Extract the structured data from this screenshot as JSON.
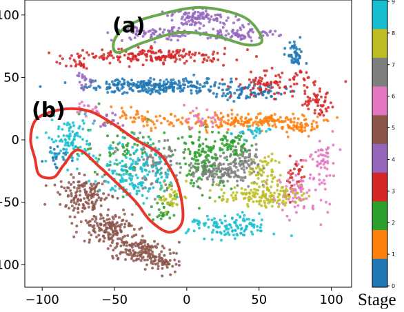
{
  "chart_data": {
    "type": "scatter",
    "title": "",
    "xlabel": "",
    "ylabel": "",
    "xlim": [
      -112,
      114
    ],
    "ylim": [
      -118,
      112
    ],
    "x_ticks": [
      -100,
      -50,
      0,
      50,
      100
    ],
    "y_ticks": [
      -100,
      -50,
      0,
      50,
      100
    ],
    "grid": false,
    "colorbar": {
      "label": "Stage",
      "ticks": [
        0,
        1,
        2,
        3,
        4,
        5,
        6,
        7,
        8,
        9
      ],
      "colors": [
        "#1f77b4",
        "#ff7f0e",
        "#2ca02c",
        "#d62728",
        "#9467bd",
        "#8c564b",
        "#e377c2",
        "#7f7f7f",
        "#bcbd22",
        "#17becf"
      ]
    },
    "annotations": [
      {
        "text": "(a)",
        "region": "stage 4 arc",
        "outline_color": "#6aa84f"
      },
      {
        "text": "(b)",
        "region": "mixed-stage lobe",
        "outline_color": "#e8372a"
      }
    ],
    "series": [
      {
        "stage": 0,
        "clusters": [
          {
            "x": -20,
            "y": 43,
            "sx": 25,
            "sy": 3,
            "n": 260
          },
          {
            "x": 45,
            "y": 38,
            "sx": 12,
            "sy": 3,
            "n": 70
          },
          {
            "x": 75,
            "y": 68,
            "sx": 3,
            "sy": 6,
            "n": 45
          },
          {
            "x": -90,
            "y": -12,
            "sx": 4,
            "sy": 4,
            "n": 25
          }
        ]
      },
      {
        "stage": 1,
        "clusters": [
          {
            "x": 40,
            "y": 15,
            "sx": 22,
            "sy": 3,
            "n": 170
          },
          {
            "x": 78,
            "y": 10,
            "sx": 8,
            "sy": 3,
            "n": 50
          },
          {
            "x": -30,
            "y": 15,
            "sx": 15,
            "sy": 4,
            "n": 60
          }
        ]
      },
      {
        "stage": 2,
        "clusters": [
          {
            "x": 12,
            "y": -15,
            "sx": 10,
            "sy": 12,
            "n": 150
          },
          {
            "x": 35,
            "y": -5,
            "sx": 6,
            "sy": 6,
            "n": 50
          },
          {
            "x": -45,
            "y": -5,
            "sx": 14,
            "sy": 12,
            "n": 70
          },
          {
            "x": -15,
            "y": -55,
            "sx": 5,
            "sy": 6,
            "n": 30
          }
        ]
      },
      {
        "stage": 3,
        "clusters": [
          {
            "x": -20,
            "y": 67,
            "sx": 25,
            "sy": 3,
            "n": 180
          },
          {
            "x": 60,
            "y": 45,
            "sx": 14,
            "sy": 5,
            "n": 90
          },
          {
            "x": 90,
            "y": 30,
            "sx": 6,
            "sy": 5,
            "n": 50
          },
          {
            "x": -75,
            "y": 60,
            "sx": 5,
            "sy": 3,
            "n": 25
          },
          {
            "x": 75,
            "y": -30,
            "sx": 4,
            "sy": 10,
            "n": 30
          }
        ]
      },
      {
        "stage": 4,
        "clusters": [
          {
            "x": -20,
            "y": 85,
            "sx": 15,
            "sy": 3,
            "n": 90
          },
          {
            "x": 10,
            "y": 98,
            "sx": 12,
            "sy": 3,
            "n": 100
          },
          {
            "x": 38,
            "y": 85,
            "sx": 12,
            "sy": 3,
            "n": 80
          },
          {
            "x": -72,
            "y": 48,
            "sx": 4,
            "sy": 4,
            "n": 20
          },
          {
            "x": -52,
            "y": 15,
            "sx": 6,
            "sy": 3,
            "n": 15
          }
        ]
      },
      {
        "stage": 5,
        "clusters": [
          {
            "x": -70,
            "y": -45,
            "sx": 9,
            "sy": 7,
            "n": 150
          },
          {
            "x": -55,
            "y": -70,
            "sx": 9,
            "sy": 6,
            "n": 150
          },
          {
            "x": -35,
            "y": -88,
            "sx": 9,
            "sy": 5,
            "n": 130
          },
          {
            "x": -15,
            "y": -98,
            "sx": 6,
            "sy": 4,
            "n": 60
          }
        ]
      },
      {
        "stage": 6,
        "clusters": [
          {
            "x": 10,
            "y": 15,
            "sx": 5,
            "sy": 4,
            "n": 25
          },
          {
            "x": 78,
            "y": -40,
            "sx": 10,
            "sy": 10,
            "n": 90
          },
          {
            "x": 95,
            "y": -15,
            "sx": 4,
            "sy": 8,
            "n": 40
          },
          {
            "x": -70,
            "y": 25,
            "sx": 6,
            "sy": 3,
            "n": 20
          }
        ]
      },
      {
        "stage": 7,
        "clusters": [
          {
            "x": 25,
            "y": -25,
            "sx": 12,
            "sy": 5,
            "n": 140
          },
          {
            "x": -20,
            "y": -20,
            "sx": 12,
            "sy": 10,
            "n": 90
          },
          {
            "x": 40,
            "y": -15,
            "sx": 6,
            "sy": 5,
            "n": 40
          }
        ]
      },
      {
        "stage": 8,
        "clusters": [
          {
            "x": 50,
            "y": -45,
            "sx": 14,
            "sy": 4,
            "n": 130
          },
          {
            "x": 55,
            "y": -25,
            "sx": 5,
            "sy": 8,
            "n": 50
          },
          {
            "x": -10,
            "y": -45,
            "sx": 5,
            "sy": 5,
            "n": 40
          }
        ]
      },
      {
        "stage": 9,
        "clusters": [
          {
            "x": -35,
            "y": -25,
            "sx": 12,
            "sy": 12,
            "n": 180
          },
          {
            "x": -80,
            "y": 0,
            "sx": 8,
            "sy": 10,
            "n": 100
          },
          {
            "x": 30,
            "y": -70,
            "sx": 14,
            "sy": 5,
            "n": 120
          },
          {
            "x": 45,
            "y": 5,
            "sx": 6,
            "sy": 3,
            "n": 25
          }
        ]
      }
    ]
  }
}
